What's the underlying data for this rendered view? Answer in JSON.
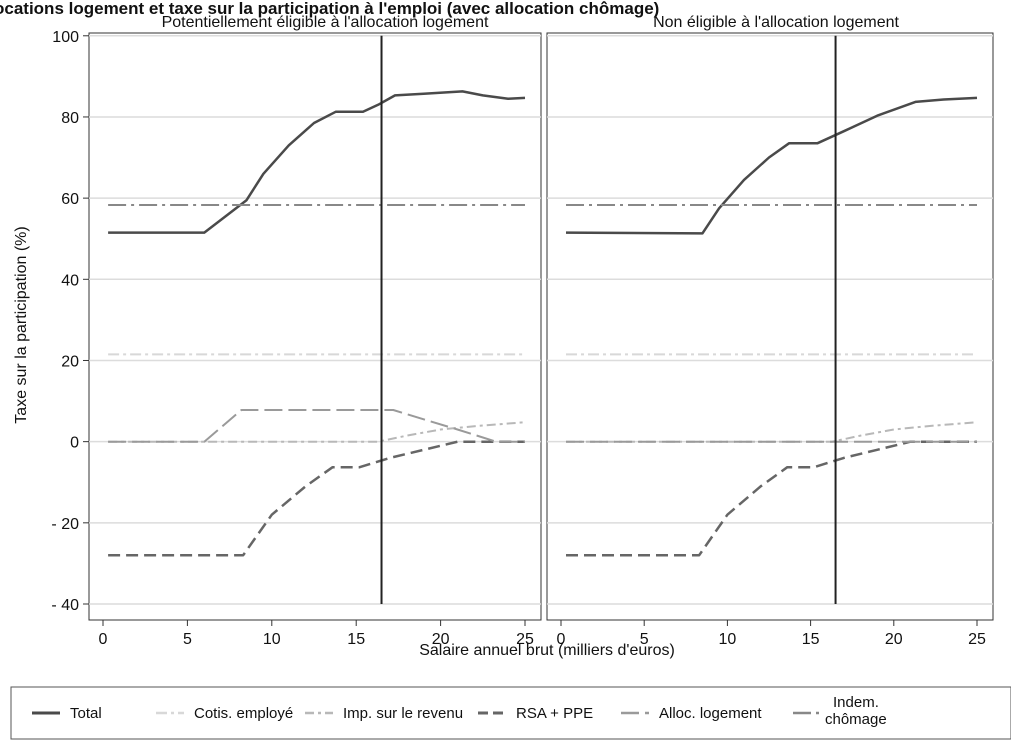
{
  "chart_data": {
    "type": "line",
    "title": "ocations logement et taxe sur la participation à l'emploi (avec allocation chômage)",
    "xlabel": "Salaire annuel brut (milliers d'euros)",
    "ylabel": "Taxe sur la participation (%)",
    "xlim": [
      0,
      25
    ],
    "ylim": [
      -40,
      100
    ],
    "xticks": [
      0,
      5,
      10,
      15,
      20,
      25
    ],
    "xtick_labels": [
      "0",
      "5",
      "10",
      "15",
      "20",
      "25"
    ],
    "yticks": [
      -40,
      -20,
      0,
      20,
      40,
      60,
      80,
      100
    ],
    "ytick_labels": [
      "- 40",
      "- 20",
      "0",
      "20",
      "40",
      "60",
      "80",
      "100"
    ],
    "grid": "horizontal",
    "legend_position": "bottom",
    "vertical_reference_line_x": 16.5,
    "legend": [
      {
        "name": "Total",
        "color": "#4a4a4a",
        "style": "solid"
      },
      {
        "name": "Cotis. employé",
        "color": "#d8d8d8",
        "style": "dashdot-light"
      },
      {
        "name": "Imp. sur le revenu",
        "color": "#b8b8b8",
        "style": "dashdot"
      },
      {
        "name": "RSA + PPE",
        "color": "#666666",
        "style": "dashed"
      },
      {
        "name": "Alloc. logement",
        "color": "#9a9a9a",
        "style": "longdash"
      },
      {
        "name": "Indem. chômage",
        "color": "#888888",
        "style": "longdashdot"
      }
    ],
    "panels": [
      {
        "title": "Potentiellement éligible à l'allocation logement",
        "series": [
          {
            "name": "Total",
            "points": [
              [
                0.3,
                51.5
              ],
              [
                6,
                51.5
              ],
              [
                8.5,
                59.5
              ],
              [
                9.5,
                66
              ],
              [
                11,
                73
              ],
              [
                12.5,
                78.5
              ],
              [
                13.8,
                81.3
              ],
              [
                15.4,
                81.3
              ],
              [
                16.3,
                83
              ],
              [
                17.3,
                85.3
              ],
              [
                19,
                85.7
              ],
              [
                21.3,
                86.3
              ],
              [
                22.5,
                85.3
              ],
              [
                24,
                84.5
              ],
              [
                25,
                84.7
              ]
            ]
          },
          {
            "name": "Cotis. employé",
            "points": [
              [
                0.3,
                21.5
              ],
              [
                25,
                21.5
              ]
            ]
          },
          {
            "name": "Imp. sur le revenu",
            "points": [
              [
                0.3,
                0
              ],
              [
                16.3,
                0
              ],
              [
                18,
                1.5
              ],
              [
                20,
                3
              ],
              [
                22,
                3.8
              ],
              [
                25,
                4.8
              ]
            ]
          },
          {
            "name": "RSA + PPE",
            "points": [
              [
                0.3,
                -28
              ],
              [
                8.3,
                -28
              ],
              [
                10,
                -18
              ],
              [
                12,
                -11
              ],
              [
                13.6,
                -6.3
              ],
              [
                15.2,
                -6.3
              ],
              [
                17,
                -4
              ],
              [
                19,
                -2
              ],
              [
                21,
                0
              ],
              [
                25,
                0
              ]
            ]
          },
          {
            "name": "Alloc. logement",
            "points": [
              [
                0.3,
                0
              ],
              [
                6,
                0
              ],
              [
                8.2,
                7.8
              ],
              [
                17.2,
                7.8
              ],
              [
                19,
                5.5
              ],
              [
                21,
                3
              ],
              [
                23.3,
                0
              ],
              [
                25,
                0
              ]
            ]
          },
          {
            "name": "Indem. chômage",
            "points": [
              [
                0.3,
                58.3
              ],
              [
                25,
                58.3
              ]
            ]
          }
        ]
      },
      {
        "title": "Non éligible à l'allocation logement",
        "series": [
          {
            "name": "Total",
            "points": [
              [
                0.3,
                51.5
              ],
              [
                8.5,
                51.3
              ],
              [
                9.5,
                57.5
              ],
              [
                11,
                64.5
              ],
              [
                12.5,
                70
              ],
              [
                13.7,
                73.5
              ],
              [
                15.4,
                73.5
              ],
              [
                17,
                76.5
              ],
              [
                19,
                80.3
              ],
              [
                21.3,
                83.7
              ],
              [
                23,
                84.3
              ],
              [
                25,
                84.7
              ]
            ]
          },
          {
            "name": "Cotis. employé",
            "points": [
              [
                0.3,
                21.5
              ],
              [
                25,
                21.5
              ]
            ]
          },
          {
            "name": "Imp. sur le revenu",
            "points": [
              [
                0.3,
                0
              ],
              [
                16.3,
                0
              ],
              [
                18,
                1.5
              ],
              [
                20,
                3
              ],
              [
                22,
                3.8
              ],
              [
                25,
                4.8
              ]
            ]
          },
          {
            "name": "RSA + PPE",
            "points": [
              [
                0.3,
                -28
              ],
              [
                8.3,
                -28
              ],
              [
                10,
                -18
              ],
              [
                12,
                -11
              ],
              [
                13.6,
                -6.3
              ],
              [
                15.2,
                -6.3
              ],
              [
                17,
                -4
              ],
              [
                19,
                -2
              ],
              [
                21,
                0
              ],
              [
                25,
                0
              ]
            ]
          },
          {
            "name": "Alloc. logement",
            "points": [
              [
                0.3,
                0
              ],
              [
                25,
                0
              ]
            ]
          },
          {
            "name": "Indem. chômage",
            "points": [
              [
                0.3,
                58.3
              ],
              [
                25,
                58.3
              ]
            ]
          }
        ]
      }
    ]
  }
}
